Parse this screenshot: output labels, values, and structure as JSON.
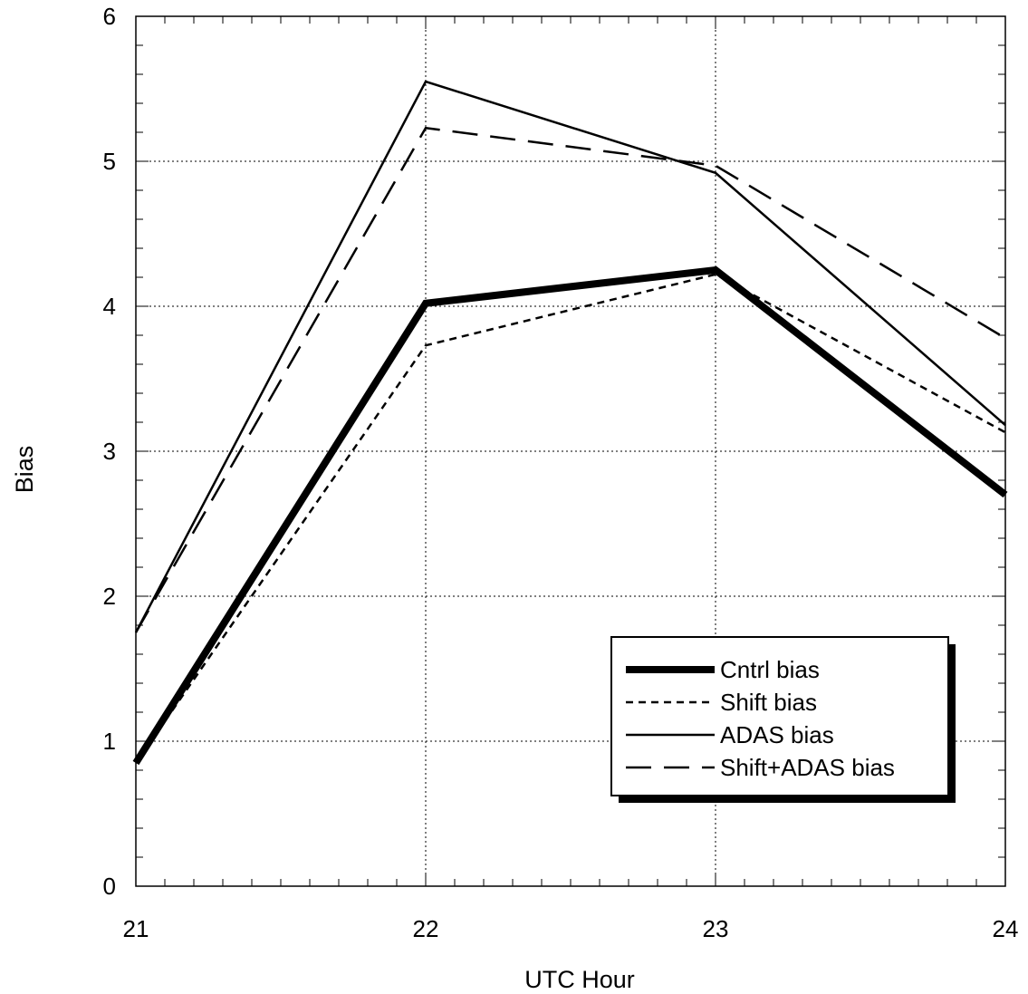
{
  "chart_data": {
    "type": "line",
    "title": "",
    "xlabel": "UTC Hour",
    "ylabel": "Bias",
    "x": [
      21,
      22,
      23,
      24
    ],
    "xlim": [
      21,
      24
    ],
    "ylim": [
      0,
      6
    ],
    "x_ticks": [
      21,
      22,
      23,
      24
    ],
    "y_ticks": [
      0,
      1,
      2,
      3,
      4,
      5,
      6
    ],
    "grid": true,
    "legend_position": "bottom-right",
    "series": [
      {
        "name": "Cntrl bias",
        "values": [
          0.85,
          4.02,
          4.25,
          2.7
        ],
        "style": "thick-solid",
        "color": "#000000"
      },
      {
        "name": "Shift bias",
        "values": [
          0.85,
          3.73,
          4.22,
          3.13
        ],
        "style": "short-dash",
        "color": "#000000"
      },
      {
        "name": "ADAS bias",
        "values": [
          1.75,
          5.55,
          4.92,
          3.18
        ],
        "style": "thin-solid",
        "color": "#000000"
      },
      {
        "name": "Shift+ADAS bias",
        "values": [
          1.75,
          5.23,
          4.97,
          3.78
        ],
        "style": "long-dash",
        "color": "#000000"
      }
    ]
  }
}
